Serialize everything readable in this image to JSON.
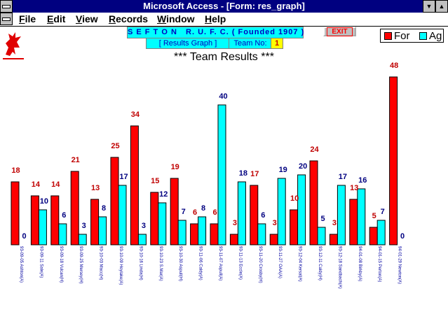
{
  "window": {
    "title": "Microsoft Access - [Form: res_graph]"
  },
  "menu": {
    "items": [
      {
        "label": "File",
        "accel": "F",
        "rest": "ile"
      },
      {
        "label": "Edit",
        "accel": "E",
        "rest": "dit"
      },
      {
        "label": "View",
        "accel": "V",
        "rest": "iew"
      },
      {
        "label": "Records",
        "accel": "R",
        "rest": "ecords"
      },
      {
        "label": "Window",
        "accel": "W",
        "rest": "indow"
      },
      {
        "label": "Help",
        "accel": "H",
        "rest": "elp"
      }
    ]
  },
  "form": {
    "banner": "S E F T O N   R. U. F. C. ( Founded 1907 )",
    "results_graph_label": "[ Results Graph ]",
    "team_no_label": "Team No:",
    "team_no_value": "1",
    "exit_label": "EXIT"
  },
  "colors": {
    "for": "#ff0000",
    "ag": "#00ffff",
    "for_label": "#c00000",
    "ag_label": "#000080",
    "xlabel": "#0000a0"
  },
  "chart_data": {
    "type": "bar",
    "title": "*** Team Results ***",
    "legend": {
      "position": "top-right"
    },
    "categories": [
      "93-09-05 Ashton(A)",
      "93-09-11 Sale(A)",
      "93-09-18 Vulcan(H)",
      "93-09-25 Mersey(H)",
      "93-10-03 Macc(H)",
      "93-10-09 Hoylake(A)",
      "93-10-16 Linda(H)",
      "93-10-23 S.Mar(A)",
      "93-10-30 Aspull(H)",
      "93-11-06 Caldy(A)",
      "93-11-07 Aspull(A)",
      "93-11-13 Eccle(A)",
      "93-11-20 Crosby(H)",
      "93-11-27 OAA(A)",
      "93-12-04 Kersal(A)",
      "93-12-11 Caldy(H)",
      "93-12-18 Sandbach(A)",
      "94-01-08 Birkby(A)",
      "94-01-15 Perton(A)",
      "94-01-29 Newton(A)"
    ],
    "series": [
      {
        "name": "For",
        "values": [
          18,
          14,
          14,
          21,
          13,
          25,
          34,
          15,
          19,
          6,
          6,
          3,
          17,
          3,
          10,
          24,
          3,
          13,
          5,
          48
        ]
      },
      {
        "name": "Ag",
        "values": [
          0,
          10,
          6,
          3,
          8,
          17,
          3,
          12,
          7,
          8,
          40,
          18,
          6,
          19,
          20,
          5,
          17,
          16,
          7,
          0
        ]
      }
    ]
  }
}
